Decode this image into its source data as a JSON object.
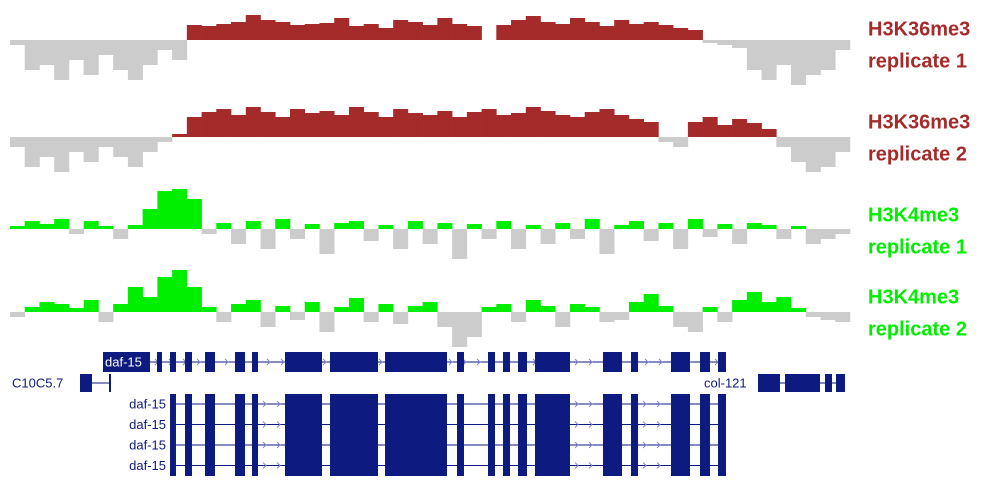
{
  "tracks": [
    {
      "label": [
        "H3K36me3",
        "replicate 1"
      ],
      "color": "#a52a2a",
      "negative_color": "#cccccc",
      "values": [
        -5,
        -30,
        -25,
        -40,
        -20,
        -35,
        -15,
        -30,
        -40,
        -25,
        -10,
        -20,
        15,
        14,
        16,
        18,
        25,
        20,
        18,
        15,
        16,
        17,
        22,
        14,
        16,
        12,
        20,
        18,
        15,
        22,
        16,
        14,
        0,
        15,
        20,
        24,
        18,
        16,
        22,
        18,
        14,
        20,
        16,
        18,
        15,
        12,
        10,
        -3,
        -5,
        -8,
        -30,
        -40,
        -25,
        -45,
        -35,
        -30,
        -10
      ]
    },
    {
      "label": [
        "H3K36me3",
        "replicate 2"
      ],
      "color": "#a52a2a",
      "negative_color": "#cccccc",
      "values": [
        -10,
        -30,
        -20,
        -35,
        -15,
        -25,
        -10,
        -20,
        -30,
        -15,
        -5,
        3,
        20,
        25,
        28,
        22,
        30,
        25,
        20,
        28,
        24,
        26,
        22,
        30,
        25,
        20,
        28,
        24,
        22,
        26,
        20,
        25,
        28,
        22,
        24,
        30,
        26,
        22,
        20,
        25,
        28,
        22,
        18,
        15,
        -5,
        -10,
        15,
        20,
        12,
        18,
        14,
        8,
        -10,
        -25,
        -35,
        -30,
        -15
      ]
    },
    {
      "label": [
        "H3K4me3",
        "replicate 1"
      ],
      "color": "#00ee00",
      "negative_color": "#cccccc",
      "values": [
        3,
        8,
        5,
        10,
        -5,
        8,
        3,
        -10,
        4,
        20,
        38,
        40,
        30,
        -5,
        6,
        -15,
        8,
        -20,
        10,
        -10,
        5,
        -25,
        6,
        8,
        -12,
        4,
        -20,
        8,
        -15,
        6,
        -30,
        5,
        -10,
        8,
        -20,
        4,
        -15,
        6,
        -10,
        10,
        -25,
        4,
        8,
        -12,
        6,
        -20,
        10,
        -8,
        5,
        -15,
        6,
        4,
        -10,
        3,
        -15,
        -10,
        -5
      ]
    },
    {
      "label": [
        "H3K4me3",
        "replicate 2"
      ],
      "color": "#00ee00",
      "negative_color": "#cccccc",
      "values": [
        -5,
        5,
        10,
        8,
        4,
        12,
        -10,
        8,
        25,
        15,
        35,
        42,
        25,
        5,
        -10,
        8,
        12,
        -15,
        6,
        -8,
        10,
        -20,
        5,
        14,
        -10,
        8,
        -12,
        6,
        10,
        -15,
        -35,
        -25,
        5,
        8,
        -10,
        12,
        6,
        -15,
        8,
        5,
        -10,
        -8,
        10,
        18,
        6,
        -15,
        -20,
        5,
        -10,
        12,
        20,
        10,
        15,
        4,
        -5,
        -8,
        -10
      ]
    }
  ],
  "genes": {
    "main": "daf-15",
    "left": "C10C5.7",
    "right": "col-121"
  },
  "isoforms": [
    "daf-15",
    "daf-15",
    "daf-15",
    "daf-15"
  ],
  "gene_color": "#0d1a80"
}
